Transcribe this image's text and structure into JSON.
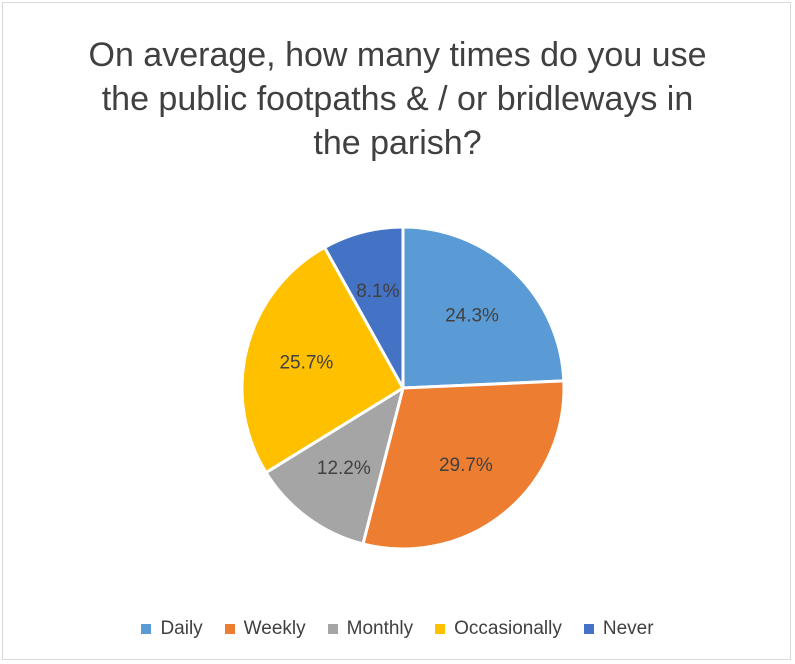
{
  "chart_data": {
    "type": "pie",
    "title_lines": [
      "On average, how many times do you use",
      "the public footpaths & / or bridleways in",
      "the parish?"
    ],
    "categories": [
      "Daily",
      "Weekly",
      "Monthly",
      "Occasionally",
      "Never"
    ],
    "values": [
      24.3,
      29.7,
      12.2,
      25.7,
      8.1
    ],
    "value_labels": [
      "24.3%",
      "29.7%",
      "12.2%",
      "25.7%",
      "8.1%"
    ],
    "colors": [
      "#5B9BD5",
      "#ED7D31",
      "#A5A5A5",
      "#FFC000",
      "#4472C4"
    ],
    "legend_position": "bottom"
  }
}
